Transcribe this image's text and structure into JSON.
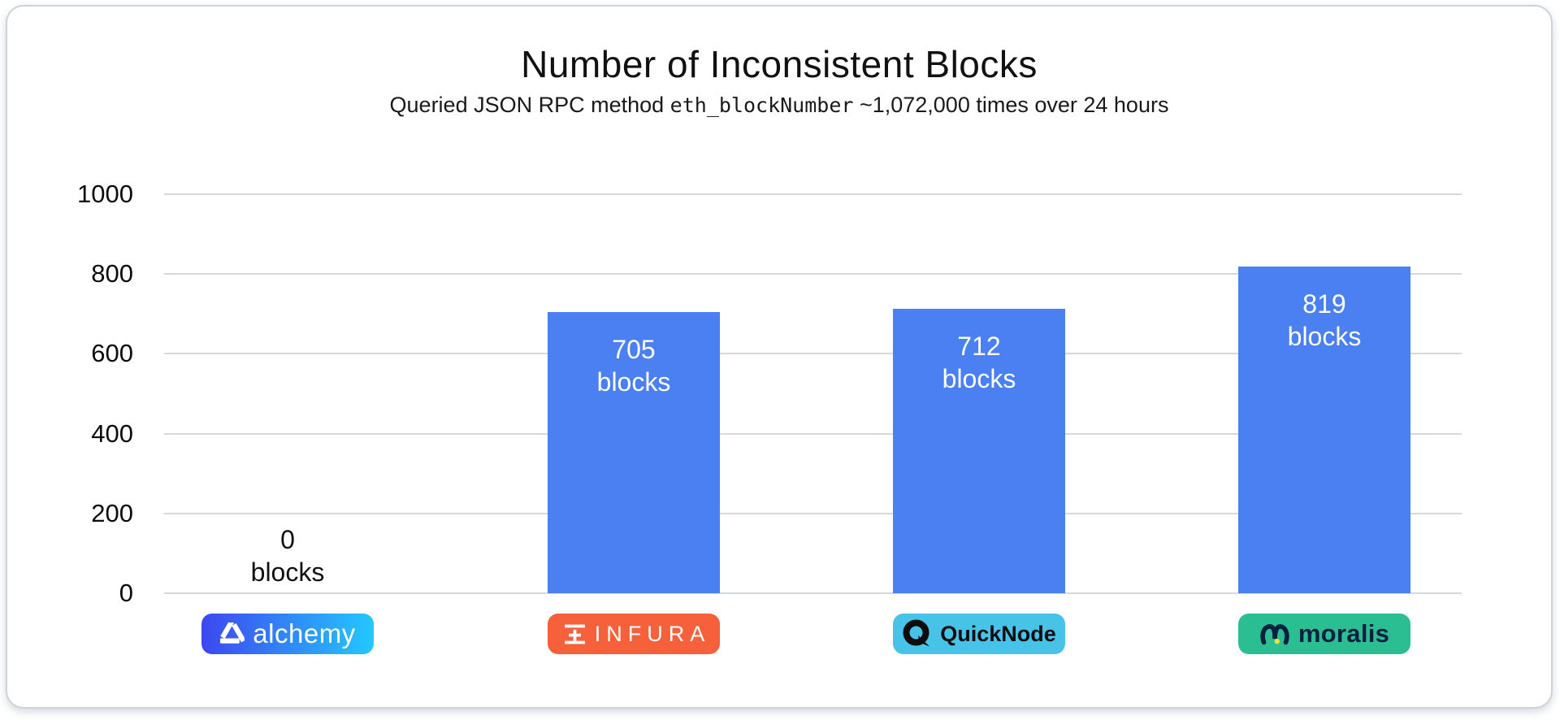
{
  "chart_data": {
    "type": "bar",
    "title": "Number of Inconsistent Blocks",
    "subtitle_prefix": "Queried JSON RPC method ",
    "subtitle_code": "eth_blockNumber",
    "subtitle_suffix": " ~1,072,000 times over 24 hours",
    "categories": [
      "alchemy",
      "infura",
      "quicknode",
      "moralis"
    ],
    "values": [
      0,
      705,
      712,
      819
    ],
    "unit": "blocks",
    "yticks": [
      0,
      200,
      400,
      600,
      800,
      1000
    ],
    "ylim": [
      0,
      1000
    ],
    "grid": true,
    "legend": "none",
    "bar_color": "#4A80F2",
    "bar_label_color_inside": "#ffffff",
    "bar_label_color_zero": "#111111",
    "gridline_color": "#d6d9dc",
    "axis_label_color": "#0c0c0c"
  },
  "badges": [
    {
      "name": "alchemy",
      "label": "alchemy",
      "bg_gradient": [
        "#3D47EF",
        "#24C8FF"
      ],
      "text_color": "#ffffff",
      "logo": "alchemy-triangle-icon",
      "logo_color": "#ffffff"
    },
    {
      "name": "infura",
      "label": "INFURA",
      "bg": "#F6613C",
      "text_color": "#ffffff",
      "logo": "infura-icon",
      "logo_color": "#ffffff"
    },
    {
      "name": "quicknode",
      "label": "QuickNode",
      "bg": "#47C3E8",
      "text_color": "#0d0d0d",
      "logo": "quicknode-q-icon",
      "logo_color": "#0d0d0d"
    },
    {
      "name": "moralis",
      "label": "moralis",
      "bg": "#2BBE92",
      "text_color": "#07203F",
      "logo": "moralis-m-icon",
      "logo_color": "#07203F",
      "logo_dot_color": "#E8E234"
    }
  ]
}
